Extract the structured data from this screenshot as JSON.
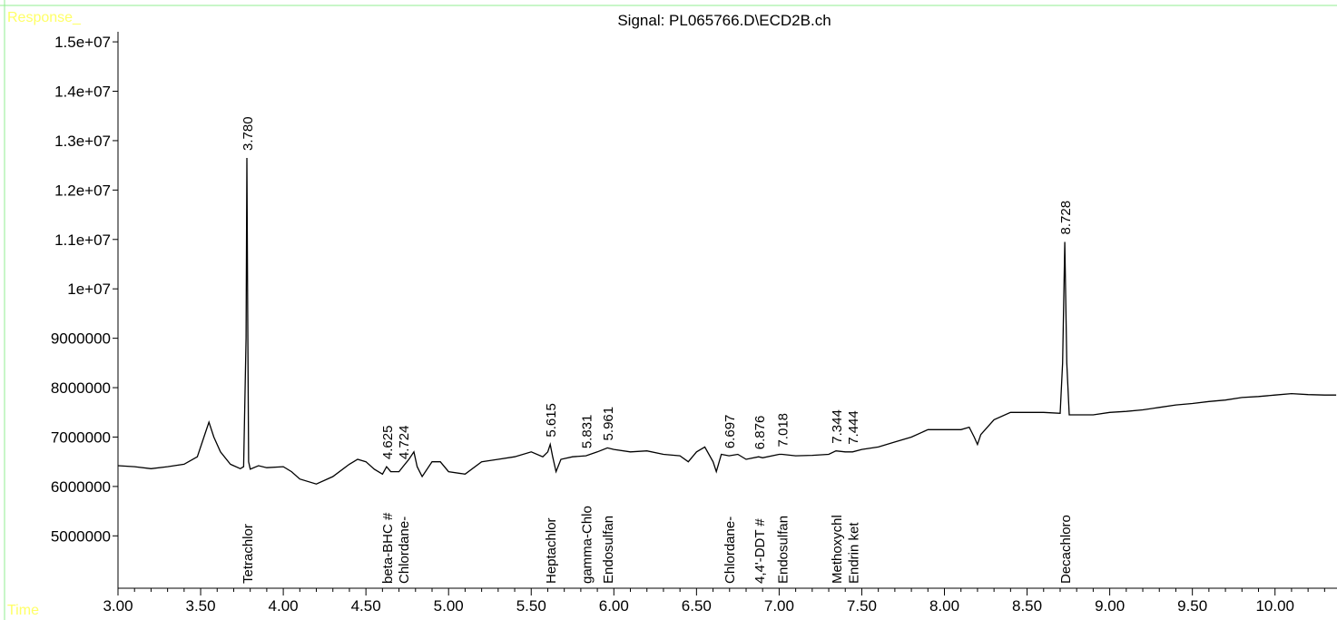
{
  "chart_data": {
    "type": "line",
    "title": "Signal: PL065766.D\\ECD2B.ch",
    "y_label": "Response_",
    "x_label": "Time",
    "xlim": [
      3.0,
      10.375
    ],
    "ylim": [
      3940000,
      15700000
    ],
    "xticks": [
      {
        "value": 3,
        "label": "3.00"
      },
      {
        "value": 3.5,
        "label": "3.50"
      },
      {
        "value": 4,
        "label": "4.00"
      },
      {
        "value": 4.5,
        "label": "4.50"
      },
      {
        "value": 5,
        "label": "5.00"
      },
      {
        "value": 5.5,
        "label": "5.50"
      },
      {
        "value": 6,
        "label": "6.00"
      },
      {
        "value": 6.5,
        "label": "6.50"
      },
      {
        "value": 7,
        "label": "7.00"
      },
      {
        "value": 7.5,
        "label": "7.50"
      },
      {
        "value": 8,
        "label": "8.00"
      },
      {
        "value": 8.5,
        "label": "8.50"
      },
      {
        "value": 9,
        "label": "9.00"
      },
      {
        "value": 9.5,
        "label": "9.50"
      },
      {
        "value": 10,
        "label": "10.00"
      }
    ],
    "yticks": [
      5000000,
      6000000,
      7000000,
      8000000,
      9000000,
      {
        "value": 10000000,
        "label": "1e+07"
      },
      {
        "value": 11000000,
        "label": "1.1e+07"
      },
      {
        "value": 12000000,
        "label": "1.2e+07"
      },
      {
        "value": 13000000,
        "label": "1.3e+07"
      },
      {
        "value": 14000000,
        "label": "1.4e+07"
      },
      {
        "value": 15000000,
        "label": "1.5e+07"
      }
    ],
    "series": [
      {
        "color": "#000000",
        "x": [
          3.0,
          3.1,
          3.2,
          3.3,
          3.4,
          3.48,
          3.53,
          3.55,
          3.58,
          3.62,
          3.68,
          3.74,
          3.76,
          3.775,
          3.78,
          3.785,
          3.79,
          3.8,
          3.85,
          3.9,
          4.0,
          4.05,
          4.1,
          4.2,
          4.3,
          4.4,
          4.45,
          4.5,
          4.55,
          4.6,
          4.625,
          4.65,
          4.7,
          4.724,
          4.76,
          4.79,
          4.81,
          4.84,
          4.9,
          4.95,
          5.0,
          5.1,
          5.2,
          5.3,
          5.4,
          5.5,
          5.57,
          5.6,
          5.615,
          5.63,
          5.65,
          5.68,
          5.75,
          5.831,
          5.9,
          5.961,
          6.0,
          6.1,
          6.2,
          6.3,
          6.4,
          6.45,
          6.5,
          6.55,
          6.6,
          6.62,
          6.65,
          6.697,
          6.75,
          6.8,
          6.876,
          6.9,
          7.0,
          7.018,
          7.1,
          7.2,
          7.3,
          7.344,
          7.4,
          7.444,
          7.5,
          7.6,
          7.7,
          7.8,
          7.9,
          8.0,
          8.1,
          8.15,
          8.18,
          8.2,
          8.22,
          8.3,
          8.4,
          8.5,
          8.6,
          8.7,
          8.715,
          8.728,
          8.74,
          8.755,
          8.8,
          8.9,
          9.0,
          9.1,
          9.2,
          9.3,
          9.4,
          9.5,
          9.6,
          9.7,
          9.8,
          9.9,
          10.0,
          10.1,
          10.2,
          10.3,
          10.37
        ],
        "values": [
          6420000,
          6400000,
          6360000,
          6400000,
          6450000,
          6600000,
          7100000,
          7300000,
          7000000,
          6700000,
          6450000,
          6360000,
          6400000,
          9000000,
          12650000,
          9500000,
          6500000,
          6350000,
          6420000,
          6380000,
          6400000,
          6300000,
          6150000,
          6050000,
          6200000,
          6450000,
          6550000,
          6500000,
          6350000,
          6250000,
          6400000,
          6300000,
          6300000,
          6400000,
          6550000,
          6700000,
          6400000,
          6200000,
          6500000,
          6500000,
          6300000,
          6250000,
          6500000,
          6550000,
          6600000,
          6700000,
          6600000,
          6700000,
          6850000,
          6600000,
          6300000,
          6550000,
          6600000,
          6620000,
          6700000,
          6780000,
          6750000,
          6700000,
          6720000,
          6650000,
          6620000,
          6500000,
          6700000,
          6800000,
          6500000,
          6300000,
          6650000,
          6620000,
          6650000,
          6550000,
          6600000,
          6580000,
          6650000,
          6650000,
          6620000,
          6630000,
          6650000,
          6720000,
          6700000,
          6700000,
          6750000,
          6800000,
          6900000,
          7000000,
          7150000,
          7150000,
          7150000,
          7200000,
          7000000,
          6850000,
          7050000,
          7350000,
          7500000,
          7500000,
          7500000,
          7480000,
          8500000,
          10950000,
          8500000,
          7450000,
          7450000,
          7450000,
          7500000,
          7520000,
          7550000,
          7600000,
          7650000,
          7680000,
          7720000,
          7750000,
          7800000,
          7820000,
          7850000,
          7880000,
          7860000,
          7850000,
          7850000
        ]
      }
    ],
    "peaks": [
      {
        "rt": {
          "value": 3.78,
          "label": "3.780"
        },
        "compound": "Tetrachlor"
      },
      {
        "rt": {
          "value": 4.625,
          "label": "4.625"
        },
        "compound": "beta-BHC #"
      },
      {
        "rt": {
          "value": 4.724,
          "label": "4.724"
        },
        "compound": "Chlordane-"
      },
      {
        "rt": {
          "value": 5.615,
          "label": "5.615"
        },
        "compound": "Heptachlor"
      },
      {
        "rt": {
          "value": 5.831,
          "label": "5.831"
        },
        "compound": "gamma-Chlo"
      },
      {
        "rt": {
          "value": 5.961,
          "label": "5.961"
        },
        "compound": "Endosulfan"
      },
      {
        "rt": {
          "value": 6.697,
          "label": "6.697"
        },
        "compound": "Chlordane-"
      },
      {
        "rt": {
          "value": 6.876,
          "label": "6.876"
        },
        "compound": "4,4'-DDT #"
      },
      {
        "rt": {
          "value": 7.018,
          "label": "7.018"
        },
        "compound": "Endosulfan"
      },
      {
        "rt": {
          "value": 7.344,
          "label": "7.344"
        },
        "compound": "Methoxychl"
      },
      {
        "rt": {
          "value": 7.444,
          "label": "7.444"
        },
        "compound": "Endrin ket"
      },
      {
        "rt": {
          "value": 8.728,
          "label": "8.728"
        },
        "compound": "Decachloro"
      }
    ]
  }
}
